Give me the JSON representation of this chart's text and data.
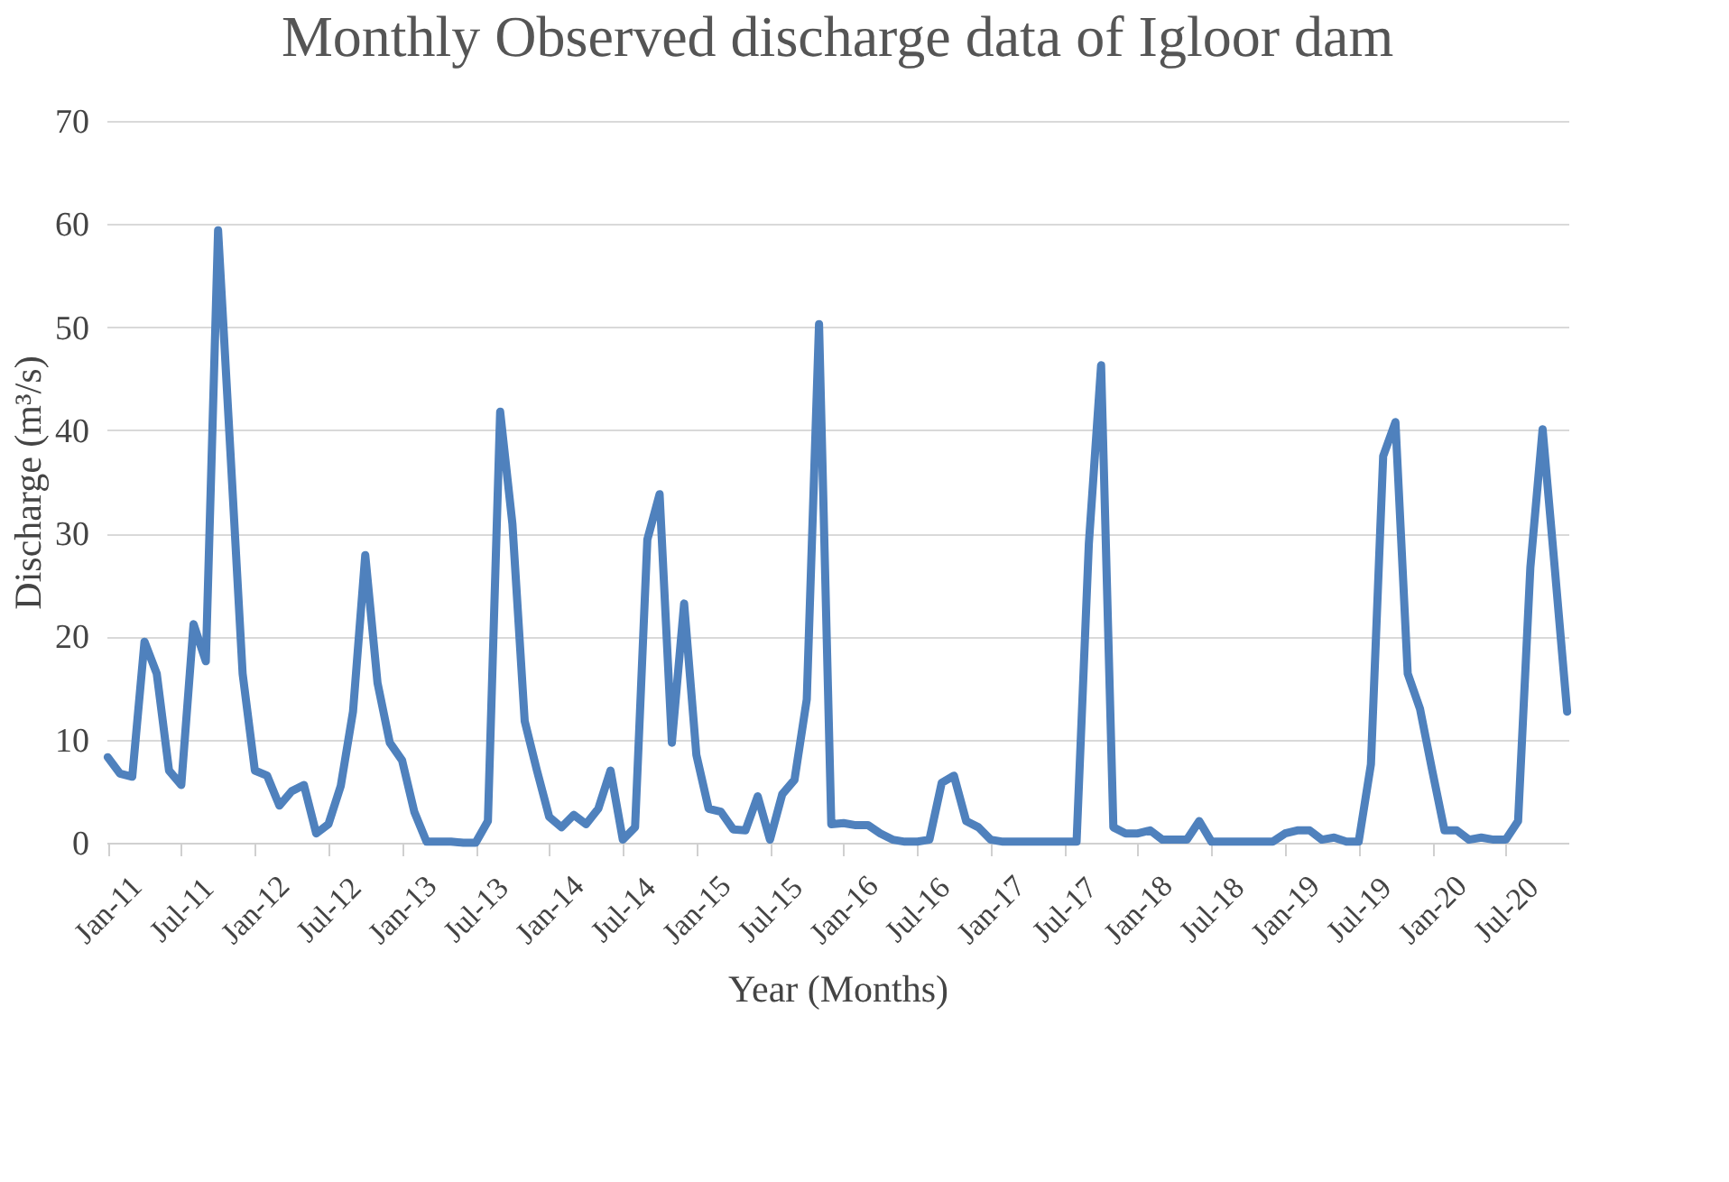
{
  "chart_data": {
    "type": "line",
    "title": "Monthly Observed discharge data of Igloor dam",
    "xlabel": "Year (Months)",
    "ylabel": "Discharge (m³/s)",
    "categories": [
      "Jan-11",
      null,
      null,
      null,
      null,
      null,
      "Jul-11",
      null,
      null,
      null,
      null,
      null,
      "Jan-12",
      null,
      null,
      null,
      null,
      null,
      "Jul-12",
      null,
      null,
      null,
      null,
      null,
      "Jan-13",
      null,
      null,
      null,
      null,
      null,
      "Jul-13",
      null,
      null,
      null,
      null,
      null,
      "Jan-14",
      null,
      null,
      null,
      null,
      null,
      "Jul-14",
      null,
      null,
      null,
      null,
      null,
      "Jan-15",
      null,
      null,
      null,
      null,
      null,
      "Jul-15",
      null,
      null,
      null,
      null,
      null,
      "Jan-16",
      null,
      null,
      null,
      null,
      null,
      "Jul-16",
      null,
      null,
      null,
      null,
      null,
      "Jan-17",
      null,
      null,
      null,
      null,
      null,
      "Jul-17",
      null,
      null,
      null,
      null,
      null,
      "Jan-18",
      null,
      null,
      null,
      null,
      null,
      "Jul-18",
      null,
      null,
      null,
      null,
      null,
      "Jan-19",
      null,
      null,
      null,
      null,
      null,
      "Jul-19",
      null,
      null,
      null,
      null,
      null,
      "Jan-20",
      null,
      null,
      null,
      null,
      null,
      "Jul-20",
      null,
      null,
      null,
      null,
      null
    ],
    "series": [
      {
        "color": "#4f81bd",
        "values": [
          8.3,
          6.7,
          6.4,
          19.5,
          16.4,
          7.0,
          5.6,
          21.2,
          17.6,
          59.4,
          38,
          16.4,
          7.0,
          6.5,
          3.6,
          5.0,
          5.6,
          0.9,
          1.8,
          5.5,
          12.7,
          27.9,
          15.5,
          9.7,
          8.0,
          3.0,
          0.1,
          0.1,
          0.1,
          0,
          0,
          2.1,
          41.8,
          30.9,
          11.8,
          7.0,
          2.5,
          1.5,
          2.7,
          1.8,
          3.3,
          7.0,
          0.3,
          1.5,
          29.4,
          33.8,
          9.7,
          23.2,
          8.5,
          3.3,
          3.0,
          1.3,
          1.2,
          4.5,
          0.3,
          4.7,
          6.1,
          13.9,
          50.3,
          1.8,
          1.9,
          1.7,
          1.7,
          0.9,
          0.3,
          0.1,
          0.1,
          0.3,
          5.8,
          6.5,
          2.1,
          1.5,
          0.3,
          0.1,
          0.1,
          0.1,
          0.1,
          0.1,
          0.1,
          0.1,
          29,
          46.3,
          1.5,
          0.9,
          0.9,
          1.2,
          0.3,
          0.3,
          0.3,
          2.1,
          0.1,
          0.1,
          0.1,
          0.1,
          0.1,
          0.1,
          0.9,
          1.2,
          1.2,
          0.3,
          0.5,
          0.1,
          0.1,
          7.6,
          37.5,
          40.8,
          16.4,
          13.0,
          7.0,
          1.2,
          1.2,
          0.3,
          0.5,
          0.3,
          0.3,
          2.1,
          26.7,
          40.1,
          26.5,
          12.7
        ]
      }
    ],
    "ylim": [
      0,
      70
    ],
    "yticks": [
      0,
      10,
      20,
      30,
      40,
      50,
      60,
      70
    ],
    "grid": "y",
    "line_style": "solid",
    "marker": "none"
  }
}
